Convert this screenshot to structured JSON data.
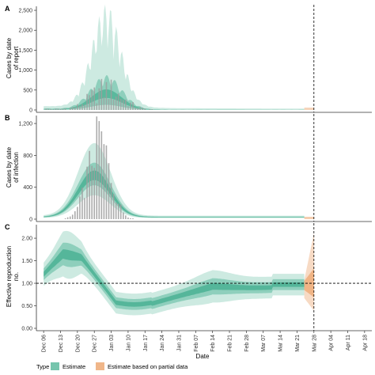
{
  "colors": {
    "estimate": "#1b9e77",
    "partial": "#e6853a",
    "bars": "#9e9e9e"
  },
  "chart_data": [
    {
      "panel": "A",
      "type": "bar+area",
      "ylabel": "Cases by date of report",
      "ylim": [
        0,
        2600
      ],
      "yticks": [
        0,
        500,
        1000,
        1500,
        2000,
        2500
      ],
      "ytick_labels": [
        "0",
        "500",
        "1,000",
        "1,500",
        "2,000",
        "2,500"
      ]
    },
    {
      "panel": "B",
      "type": "bar+area",
      "ylabel": "Cases by date of infection",
      "ylim": [
        0,
        1300
      ],
      "yticks": [
        0,
        400,
        800,
        1200
      ],
      "ytick_labels": [
        "0",
        "400",
        "800",
        "1,200"
      ]
    },
    {
      "panel": "C",
      "type": "area",
      "ylabel": "Effective reproduction no.",
      "ylim": [
        0,
        2.3
      ],
      "yticks": [
        0,
        0.5,
        1,
        1.5,
        2
      ],
      "ytick_labels": [
        "0.00",
        "0.50",
        "1.00",
        "1.50",
        "2.00"
      ],
      "reference_line": 1.0
    }
  ],
  "x_axis": {
    "label": "Date",
    "ticks": [
      "Dec 06",
      "Dec 13",
      "Dec 20",
      "Dec 27",
      "Jan 03",
      "Jan 10",
      "Jan 17",
      "Jan 24",
      "Jan 31",
      "Feb 07",
      "Feb 14",
      "Feb 21",
      "Feb 28",
      "Mar 07",
      "Mar 14",
      "Mar 21",
      "Mar 28",
      "Apr 04",
      "Apr 11",
      "Apr 18"
    ],
    "vline": "Mar 28"
  },
  "legend": {
    "title": "Type",
    "items": [
      "Estimate",
      "Estimate based on partial data"
    ]
  }
}
